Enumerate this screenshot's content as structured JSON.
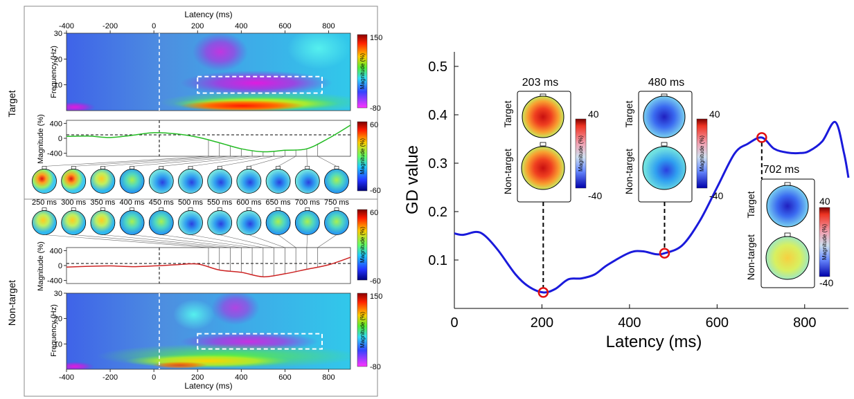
{
  "chart_data": [
    {
      "type": "heatmap",
      "panel": "target-time-frequency",
      "row_label": "Target",
      "xlabel": "Latency (ms)",
      "ylabel": "Frequency (Hz)",
      "xlim": [
        -400,
        900
      ],
      "ylim": [
        0,
        30
      ],
      "x_ticks": [
        "-400",
        "-200",
        "0",
        "200",
        "400",
        "600",
        "800"
      ],
      "y_ticks": [
        "30",
        "20",
        "10"
      ],
      "colorbar": {
        "label": "Magnitude (%)",
        "max": "150",
        "min": "-80"
      },
      "box": {
        "x": [
          200,
          770
        ],
        "y": [
          6.8,
          13.2
        ]
      }
    },
    {
      "type": "line",
      "panel": "target-magnitude",
      "ylabel": "Magnitude (%)",
      "xlim": [
        -400,
        900
      ],
      "ylim": [
        -480,
        480
      ],
      "y_ticks": [
        "400",
        "0",
        "-400"
      ],
      "color": "#22bb22",
      "x": [
        -400,
        -300,
        -200,
        -100,
        0,
        100,
        200,
        300,
        400,
        500,
        600,
        700,
        800,
        900
      ],
      "y": [
        50,
        60,
        20,
        80,
        150,
        120,
        30,
        -120,
        -280,
        -360,
        -320,
        -280,
        0,
        350
      ]
    },
    {
      "type": "table",
      "panel": "topomap-times",
      "times": [
        "250 ms",
        "300 ms",
        "350 ms",
        "400 ms",
        "450 ms",
        "500 ms",
        "550 ms",
        "600 ms",
        "650 ms",
        "700 ms",
        "750 ms"
      ],
      "colorbar": {
        "label": "Magnitude (%)",
        "max": "60",
        "min": "-60"
      },
      "colorbar2": {
        "label": "Magnitude (%)",
        "max": "60",
        "min": "-60"
      }
    },
    {
      "type": "line",
      "panel": "nontarget-magnitude",
      "ylabel": "Magnitude (%)",
      "xlim": [
        -400,
        900
      ],
      "ylim": [
        -480,
        480
      ],
      "y_ticks": [
        "400",
        "0",
        "-400"
      ],
      "color": "#cc2222",
      "x": [
        -400,
        -300,
        -200,
        -100,
        0,
        100,
        200,
        300,
        400,
        500,
        600,
        700,
        800,
        900
      ],
      "y": [
        -40,
        -20,
        -10,
        -30,
        -10,
        20,
        40,
        -120,
        -180,
        -300,
        -220,
        -100,
        20,
        220
      ]
    },
    {
      "type": "heatmap",
      "panel": "nontarget-time-frequency",
      "row_label": "Non-target",
      "xlabel": "Latency (ms)",
      "ylabel": "Frequency (Hz)",
      "xlim": [
        -400,
        900
      ],
      "ylim": [
        0,
        30
      ],
      "x_ticks": [
        "-400",
        "-200",
        "0",
        "200",
        "400",
        "600",
        "800"
      ],
      "y_ticks": [
        "30",
        "20",
        "10"
      ],
      "colorbar": {
        "label": "Magnitude (%)",
        "max": "150",
        "min": "-80"
      },
      "box": {
        "x": [
          200,
          770
        ],
        "y": [
          8,
          14
        ]
      }
    },
    {
      "type": "line",
      "panel": "gd-value",
      "xlabel": "Latency (ms)",
      "ylabel": "GD value",
      "xlim": [
        0,
        900
      ],
      "ylim": [
        0,
        0.53
      ],
      "x_ticks": [
        "0",
        "200",
        "400",
        "600",
        "800"
      ],
      "y_ticks": [
        "0.1",
        "0.2",
        "0.3",
        "0.4",
        "0.5"
      ],
      "color": "#1a1adb",
      "x": [
        0,
        20,
        50,
        70,
        100,
        140,
        170,
        203,
        230,
        260,
        290,
        320,
        350,
        400,
        430,
        460,
        480,
        520,
        560,
        600,
        640,
        670,
        702,
        730,
        760,
        790,
        810,
        840,
        870,
        890,
        900
      ],
      "y": [
        0.155,
        0.152,
        0.158,
        0.15,
        0.12,
        0.07,
        0.045,
        0.033,
        0.04,
        0.06,
        0.062,
        0.07,
        0.09,
        0.115,
        0.118,
        0.112,
        0.114,
        0.13,
        0.18,
        0.25,
        0.32,
        0.34,
        0.353,
        0.33,
        0.322,
        0.321,
        0.325,
        0.345,
        0.385,
        0.32,
        0.27
      ],
      "markers": [
        {
          "x": 203,
          "y": 0.033,
          "label": "203 ms"
        },
        {
          "x": 480,
          "y": 0.114,
          "label": "480 ms"
        },
        {
          "x": 702,
          "y": 0.353,
          "label": "702 ms"
        }
      ],
      "inset_labels": {
        "target": "Target",
        "nontarget": "Non-target",
        "cbar_max": "40",
        "cbar_min": "-40",
        "cbar_label": "Magnitude (%)"
      }
    }
  ]
}
